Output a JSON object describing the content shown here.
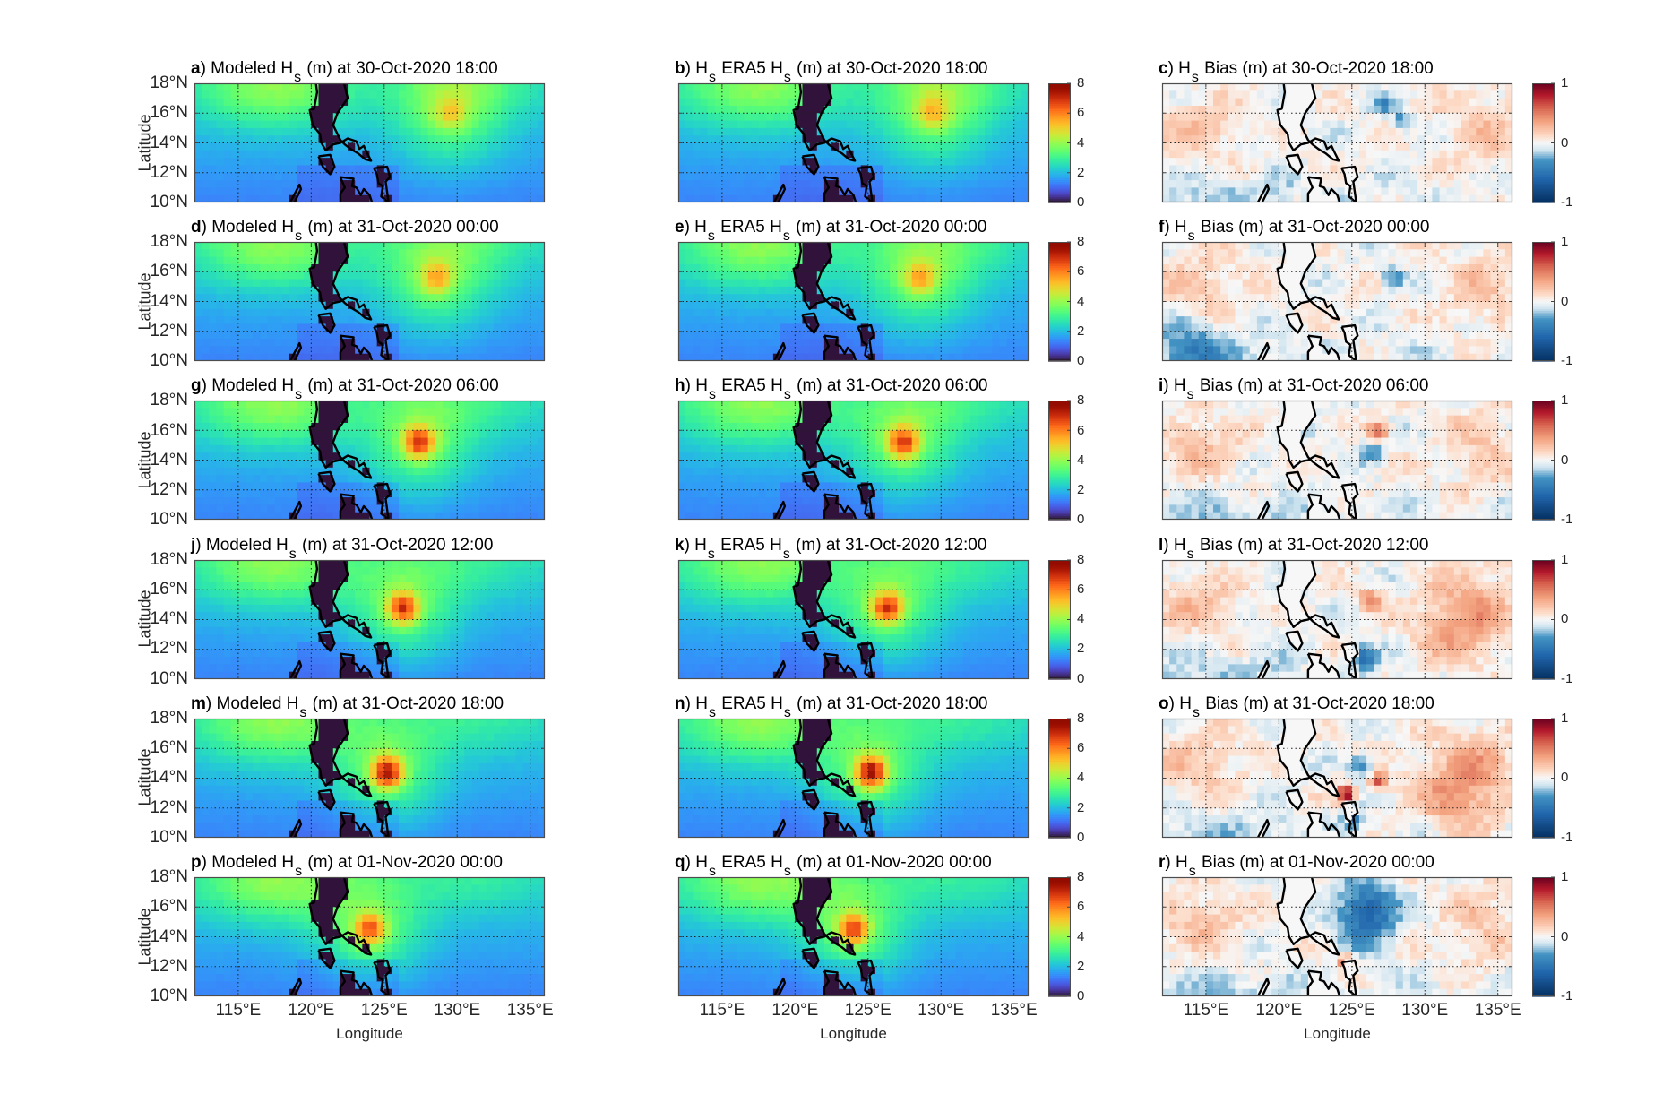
{
  "chart_data": {
    "type": "heatmap",
    "xlabel": "Longitude",
    "ylabel": "Latitude",
    "xlim": [
      112,
      136
    ],
    "ylim": [
      10,
      18
    ],
    "xticks": [
      115,
      120,
      125,
      130,
      135
    ],
    "xtick_labels": [
      "115°E",
      "120°E",
      "125°E",
      "130°E",
      "135°E"
    ],
    "yticks": [
      10,
      12,
      14,
      16,
      18
    ],
    "ytick_labels": [
      "10°N",
      "12°N",
      "14°N",
      "16°N",
      "18°N"
    ],
    "grid": true,
    "hs_colorbar": {
      "range": [
        0,
        8
      ],
      "ticks": [
        "0",
        "2",
        "4",
        "6",
        "8"
      ],
      "colormap": "turbo"
    },
    "bias_colorbar": {
      "range": [
        -1,
        1
      ],
      "ticks": [
        "-1",
        "0",
        "1"
      ],
      "colormap": "RdBu_r"
    },
    "rows": [
      {
        "time": "30-Oct-2020 18:00",
        "letters": [
          "a",
          "b",
          "c"
        ],
        "storm": {
          "lon": 129.5,
          "lat": 16.1,
          "peak_model": 5.2,
          "peak_era5": 5.4
        },
        "bias_features": [
          {
            "lon": 127.2,
            "lat": 16.5,
            "amp": -0.35,
            "sigma": 0.5
          },
          {
            "lon": 128.5,
            "lat": 15.5,
            "amp": -0.35,
            "sigma": 0.4
          }
        ]
      },
      {
        "time": "31-Oct-2020 00:00",
        "letters": [
          "d",
          "e",
          "f"
        ],
        "storm": {
          "lon": 128.6,
          "lat": 15.6,
          "peak_model": 5.6,
          "peak_era5": 5.6
        },
        "bias_features": [
          {
            "lon": 114,
            "lat": 11,
            "amp": -0.3,
            "sigma": 1.5
          },
          {
            "lon": 127.8,
            "lat": 15.6,
            "amp": -0.35,
            "sigma": 0.5
          }
        ]
      },
      {
        "time": "31-Oct-2020 06:00",
        "letters": [
          "g",
          "h",
          "i"
        ],
        "storm": {
          "lon": 127.4,
          "lat": 15.2,
          "peak_model": 7.0,
          "peak_era5": 7.0
        },
        "bias_features": [
          {
            "lon": 126.8,
            "lat": 15.9,
            "amp": 0.6,
            "sigma": 0.45
          },
          {
            "lon": 126.3,
            "lat": 14.6,
            "amp": -0.35,
            "sigma": 0.5
          }
        ]
      },
      {
        "time": "31-Oct-2020 12:00",
        "letters": [
          "j",
          "k",
          "l"
        ],
        "storm": {
          "lon": 126.3,
          "lat": 14.8,
          "peak_model": 7.0,
          "peak_era5": 7.0
        },
        "bias_features": [
          {
            "lon": 126.2,
            "lat": 15.3,
            "amp": 0.5,
            "sigma": 0.5
          },
          {
            "lon": 125.8,
            "lat": 11.5,
            "amp": -0.5,
            "sigma": 0.6
          },
          {
            "lon": 132,
            "lat": 13.5,
            "amp": 0.3,
            "sigma": 2
          }
        ]
      },
      {
        "time": "31-Oct-2020 18:00",
        "letters": [
          "m",
          "n",
          "o"
        ],
        "storm": {
          "lon": 125.2,
          "lat": 14.4,
          "peak_model": 7.5,
          "peak_era5": 7.5
        },
        "bias_features": [
          {
            "lon": 124.6,
            "lat": 12.9,
            "amp": 1.0,
            "sigma": 0.4
          },
          {
            "lon": 125.0,
            "lat": 11.3,
            "amp": -0.6,
            "sigma": 0.5
          },
          {
            "lon": 126.8,
            "lat": 13.8,
            "amp": 0.6,
            "sigma": 0.4
          },
          {
            "lon": 125.6,
            "lat": 14.8,
            "amp": -0.4,
            "sigma": 0.5
          },
          {
            "lon": 132,
            "lat": 13,
            "amp": 0.35,
            "sigma": 2
          }
        ]
      },
      {
        "time": "01-Nov-2020 00:00",
        "letters": [
          "p",
          "q",
          "r"
        ],
        "storm": {
          "lon": 124.0,
          "lat": 14.5,
          "peak_model": 6.6,
          "peak_era5": 6.8
        },
        "bias_features": [
          {
            "lon": 126.0,
            "lat": 15.6,
            "amp": -0.65,
            "sigma": 1.4
          },
          {
            "lon": 124.6,
            "lat": 12.3,
            "amp": 1.0,
            "sigma": 0.3
          }
        ]
      }
    ],
    "column_titles": [
      [
        {
          "t": ") Modeled H"
        },
        {
          "t": "s",
          "sub": true
        },
        {
          "t": " (m) at "
        }
      ],
      [
        {
          "t": ") H"
        },
        {
          "t": "s",
          "sub": true
        },
        {
          "t": " ERA5 H"
        },
        {
          "t": "s",
          "sub": true
        },
        {
          "t": " (m) at "
        }
      ],
      [
        {
          "t": ") H"
        },
        {
          "t": "s",
          "sub": true
        },
        {
          "t": " Bias (m) at "
        }
      ]
    ]
  },
  "colors": {
    "land_hs": "#30123b",
    "land_bias": "#f7f7f7",
    "coast": "#000000",
    "axis": "#4d4d4d"
  }
}
